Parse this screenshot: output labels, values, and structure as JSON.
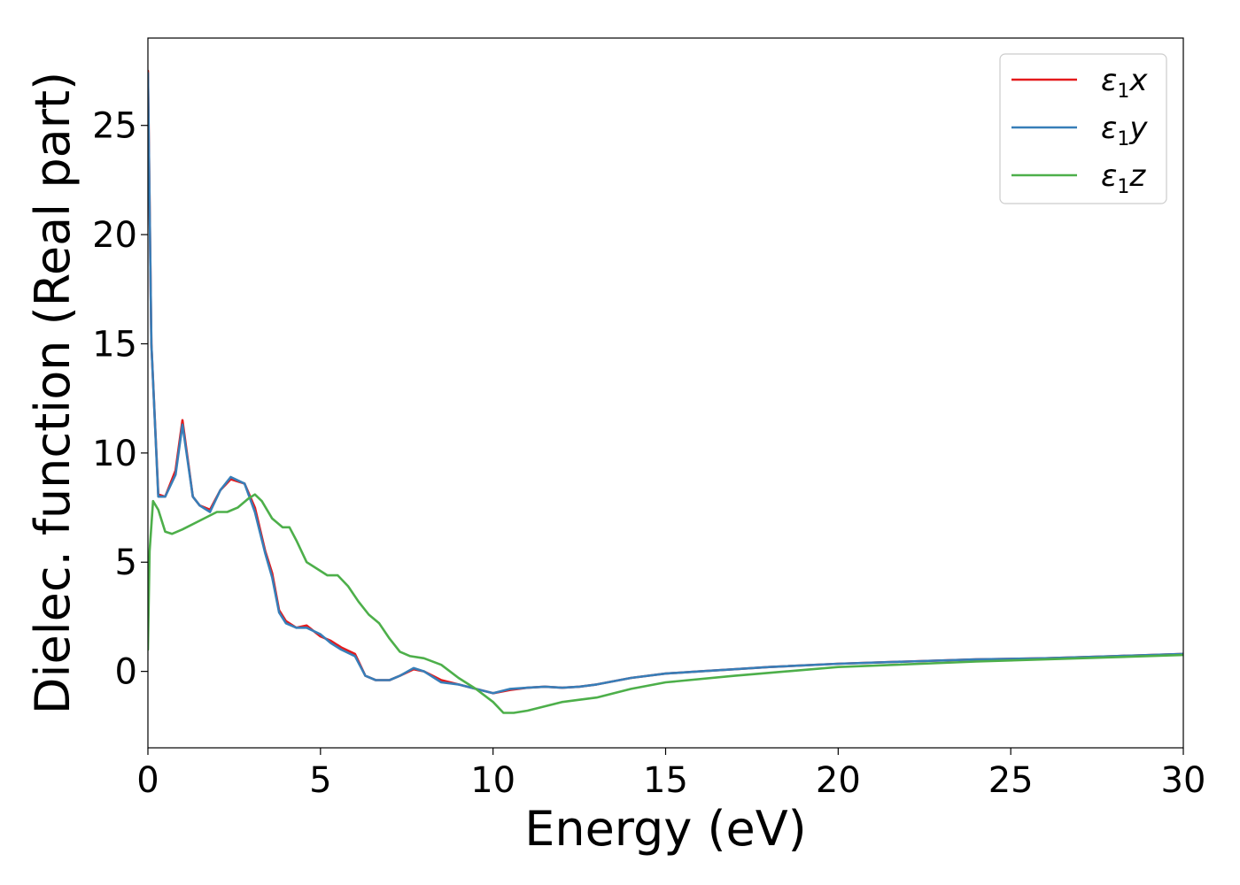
{
  "chart_data": {
    "type": "line",
    "title": "",
    "xlabel": "Energy (eV)",
    "ylabel": "Dielec. function (Real part)",
    "xlim": [
      0,
      30
    ],
    "ylim": [
      -3.5,
      29
    ],
    "xticks": [
      0,
      5,
      10,
      15,
      20,
      25,
      30
    ],
    "xtick_labels": [
      "0",
      "5",
      "10",
      "15",
      "20",
      "25",
      "30"
    ],
    "yticks": [
      0,
      5,
      10,
      15,
      20,
      25
    ],
    "ytick_labels": [
      "0",
      "5",
      "10",
      "15",
      "20",
      "25"
    ],
    "grid": false,
    "legend_position": "top-right",
    "series": [
      {
        "name": "ε₁x",
        "legend_main": "ε",
        "legend_sub": "1",
        "legend_suffix": "x",
        "color": "#e41a1c",
        "x": [
          0.0,
          0.1,
          0.3,
          0.5,
          0.8,
          1.0,
          1.3,
          1.5,
          1.8,
          2.1,
          2.4,
          2.8,
          3.1,
          3.4,
          3.6,
          3.8,
          4.0,
          4.3,
          4.6,
          5.0,
          5.3,
          5.6,
          6.0,
          6.3,
          6.6,
          7.0,
          7.3,
          7.7,
          8.0,
          8.5,
          9.0,
          9.5,
          10.0,
          10.5,
          11.0,
          11.5,
          12.0,
          12.5,
          13.0,
          14.0,
          15.0,
          16.0,
          17.0,
          18.0,
          20.0,
          22.0,
          24.0,
          26.0,
          28.0,
          30.0
        ],
        "values": [
          27.5,
          15.0,
          8.1,
          8.0,
          9.2,
          11.5,
          8.0,
          7.6,
          7.4,
          8.3,
          8.8,
          8.6,
          7.5,
          5.5,
          4.5,
          2.8,
          2.3,
          2.0,
          2.1,
          1.6,
          1.4,
          1.1,
          0.8,
          -0.2,
          -0.4,
          -0.4,
          -0.2,
          0.1,
          0.0,
          -0.4,
          -0.6,
          -0.8,
          -1.0,
          -0.85,
          -0.75,
          -0.7,
          -0.75,
          -0.7,
          -0.6,
          -0.3,
          -0.1,
          0.0,
          0.1,
          0.2,
          0.35,
          0.45,
          0.55,
          0.6,
          0.7,
          0.8
        ]
      },
      {
        "name": "ε₁y",
        "legend_main": "ε",
        "legend_sub": "1",
        "legend_suffix": "y",
        "color": "#377eb8",
        "x": [
          0.0,
          0.1,
          0.3,
          0.5,
          0.8,
          1.0,
          1.3,
          1.5,
          1.8,
          2.1,
          2.4,
          2.8,
          3.1,
          3.4,
          3.6,
          3.8,
          4.0,
          4.3,
          4.6,
          5.0,
          5.3,
          5.6,
          6.0,
          6.3,
          6.6,
          7.0,
          7.3,
          7.7,
          8.0,
          8.5,
          9.0,
          9.5,
          10.0,
          10.5,
          11.0,
          11.5,
          12.0,
          12.5,
          13.0,
          14.0,
          15.0,
          16.0,
          17.0,
          18.0,
          20.0,
          22.0,
          24.0,
          26.0,
          28.0,
          30.0
        ],
        "values": [
          27.4,
          15.0,
          8.0,
          8.0,
          9.0,
          11.3,
          8.0,
          7.6,
          7.3,
          8.3,
          8.9,
          8.6,
          7.3,
          5.4,
          4.3,
          2.7,
          2.2,
          2.0,
          2.0,
          1.7,
          1.3,
          1.0,
          0.7,
          -0.2,
          -0.4,
          -0.4,
          -0.2,
          0.15,
          0.0,
          -0.5,
          -0.6,
          -0.8,
          -1.0,
          -0.8,
          -0.75,
          -0.7,
          -0.75,
          -0.7,
          -0.6,
          -0.3,
          -0.1,
          0.0,
          0.1,
          0.2,
          0.35,
          0.45,
          0.55,
          0.6,
          0.7,
          0.8
        ]
      },
      {
        "name": "ε₁z",
        "legend_main": "ε",
        "legend_sub": "1",
        "legend_suffix": "z",
        "color": "#4daf4a",
        "x": [
          0.0,
          0.05,
          0.15,
          0.3,
          0.5,
          0.7,
          1.0,
          1.5,
          2.0,
          2.3,
          2.6,
          2.9,
          3.1,
          3.3,
          3.6,
          3.9,
          4.1,
          4.3,
          4.6,
          4.9,
          5.2,
          5.5,
          5.8,
          6.1,
          6.4,
          6.7,
          7.0,
          7.3,
          7.6,
          8.0,
          8.5,
          9.0,
          9.5,
          10.0,
          10.3,
          10.6,
          11.0,
          11.5,
          12.0,
          12.5,
          13.0,
          14.0,
          15.0,
          17.0,
          20.0,
          24.0,
          27.0,
          30.0
        ],
        "values": [
          1.0,
          5.5,
          7.8,
          7.4,
          6.4,
          6.3,
          6.5,
          6.9,
          7.3,
          7.3,
          7.5,
          7.9,
          8.1,
          7.8,
          7.0,
          6.6,
          6.6,
          6.0,
          5.0,
          4.7,
          4.4,
          4.4,
          3.9,
          3.2,
          2.6,
          2.2,
          1.5,
          0.9,
          0.7,
          0.6,
          0.3,
          -0.3,
          -0.8,
          -1.4,
          -1.9,
          -1.9,
          -1.8,
          -1.6,
          -1.4,
          -1.3,
          -1.2,
          -0.8,
          -0.5,
          -0.2,
          0.2,
          0.45,
          0.6,
          0.75
        ]
      }
    ]
  }
}
